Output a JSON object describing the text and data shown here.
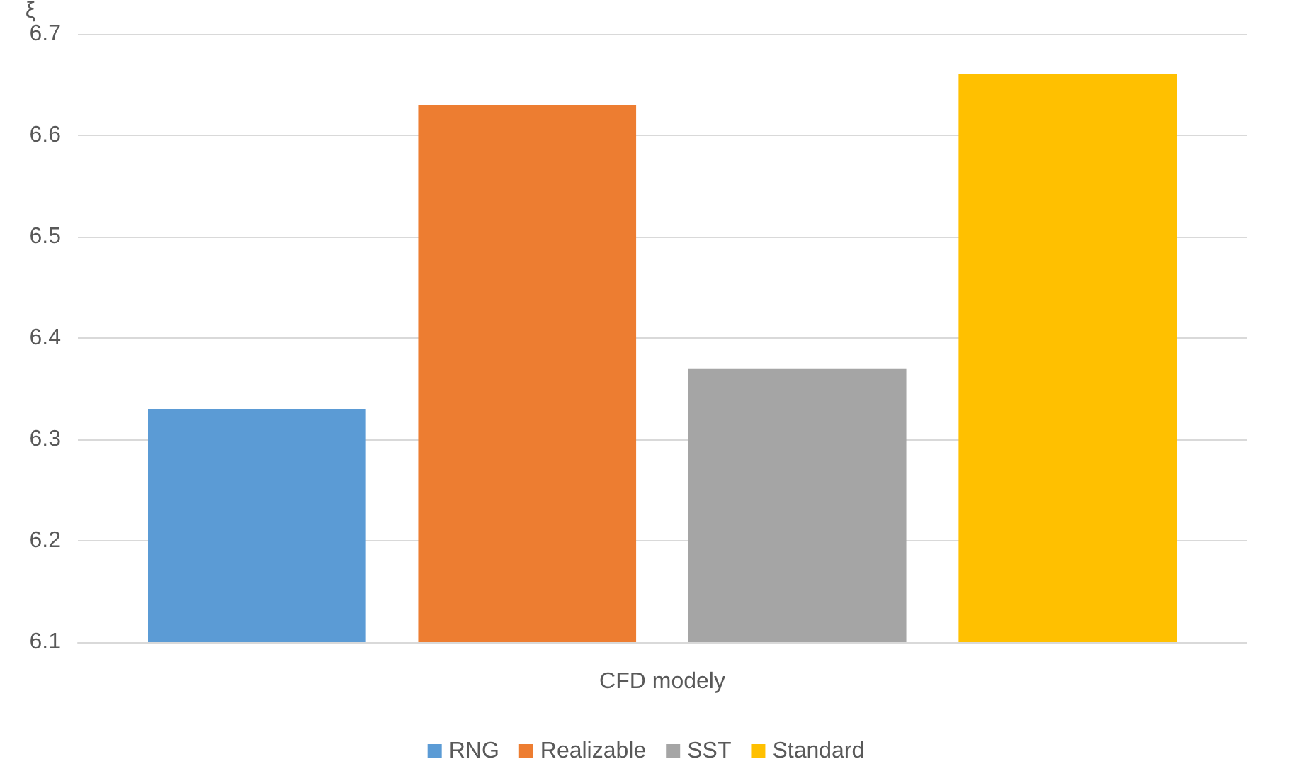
{
  "chart_data": {
    "type": "bar",
    "ylabel": "ξ",
    "categories": [
      "CFD modely"
    ],
    "series": [
      {
        "name": "RNG",
        "color": "#5b9bd5",
        "values": [
          6.33
        ]
      },
      {
        "name": "Realizable",
        "color": "#ed7d31",
        "values": [
          6.63
        ]
      },
      {
        "name": "SST",
        "color": "#a5a5a5",
        "values": [
          6.37
        ]
      },
      {
        "name": "Standard",
        "color": "#ffc000",
        "values": [
          6.66
        ]
      }
    ],
    "ylim": [
      6.1,
      6.7
    ],
    "yticks": [
      6.1,
      6.2,
      6.3,
      6.4,
      6.5,
      6.6,
      6.7
    ],
    "grid": "y",
    "legend": "bottom"
  }
}
